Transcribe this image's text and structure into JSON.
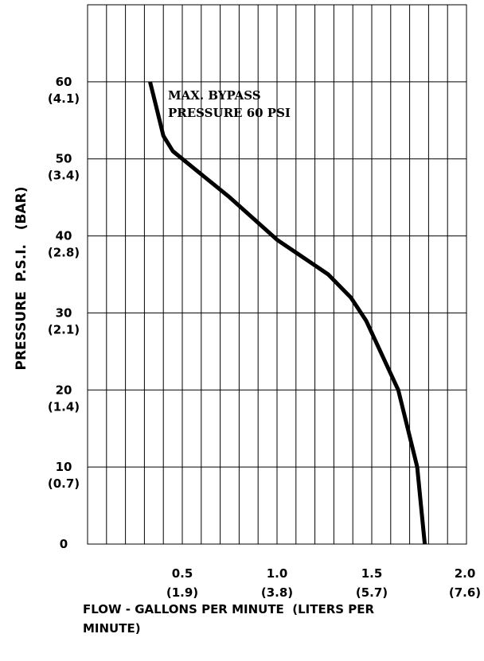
{
  "chart_data": {
    "type": "line",
    "title": "",
    "xlabel": "FLOW - GALLONS PER MINUTE  (LITERS PER MINUTE)",
    "xlabel_lines": [
      "FLOW - GALLONS PER MINUTE  (LITERS PER",
      "MINUTE)"
    ],
    "ylabel": "PRESSURE  P.S.I.   (BAR)",
    "xlim": [
      0,
      2.0
    ],
    "ylim": [
      0,
      70
    ],
    "grid": true,
    "x_ticks": [
      {
        "value": 0.5,
        "label": "0.5",
        "sub": "(1.9)"
      },
      {
        "value": 1.0,
        "label": "1.0",
        "sub": "(3.8)"
      },
      {
        "value": 1.5,
        "label": "1.5",
        "sub": "(5.7)"
      },
      {
        "value": 2.0,
        "label": "2.0",
        "sub": "(7.6)"
      }
    ],
    "y_ticks": [
      {
        "value": 0,
        "label": "0",
        "sub": ""
      },
      {
        "value": 10,
        "label": "10",
        "sub": "(0.7)"
      },
      {
        "value": 20,
        "label": "20",
        "sub": "(1.4)"
      },
      {
        "value": 30,
        "label": "30",
        "sub": "(2.1)"
      },
      {
        "value": 40,
        "label": "40",
        "sub": "(2.8)"
      },
      {
        "value": 50,
        "label": "50",
        "sub": "(3.4)"
      },
      {
        "value": 60,
        "label": "60",
        "sub": "(4.1)"
      }
    ],
    "annotation": [
      "MAX.  BYPASS",
      "PRESSURE  60  PSI"
    ],
    "series": [
      {
        "x": [
          0.33,
          0.36,
          0.4,
          0.45,
          0.55,
          0.75,
          1.0,
          1.27,
          1.39,
          1.47,
          1.64,
          1.74,
          1.78
        ],
        "y": [
          60.0,
          57.0,
          53.0,
          51.0,
          49.0,
          45.0,
          39.5,
          35.0,
          32.0,
          29.0,
          20.0,
          10.0,
          0.0
        ]
      }
    ]
  }
}
